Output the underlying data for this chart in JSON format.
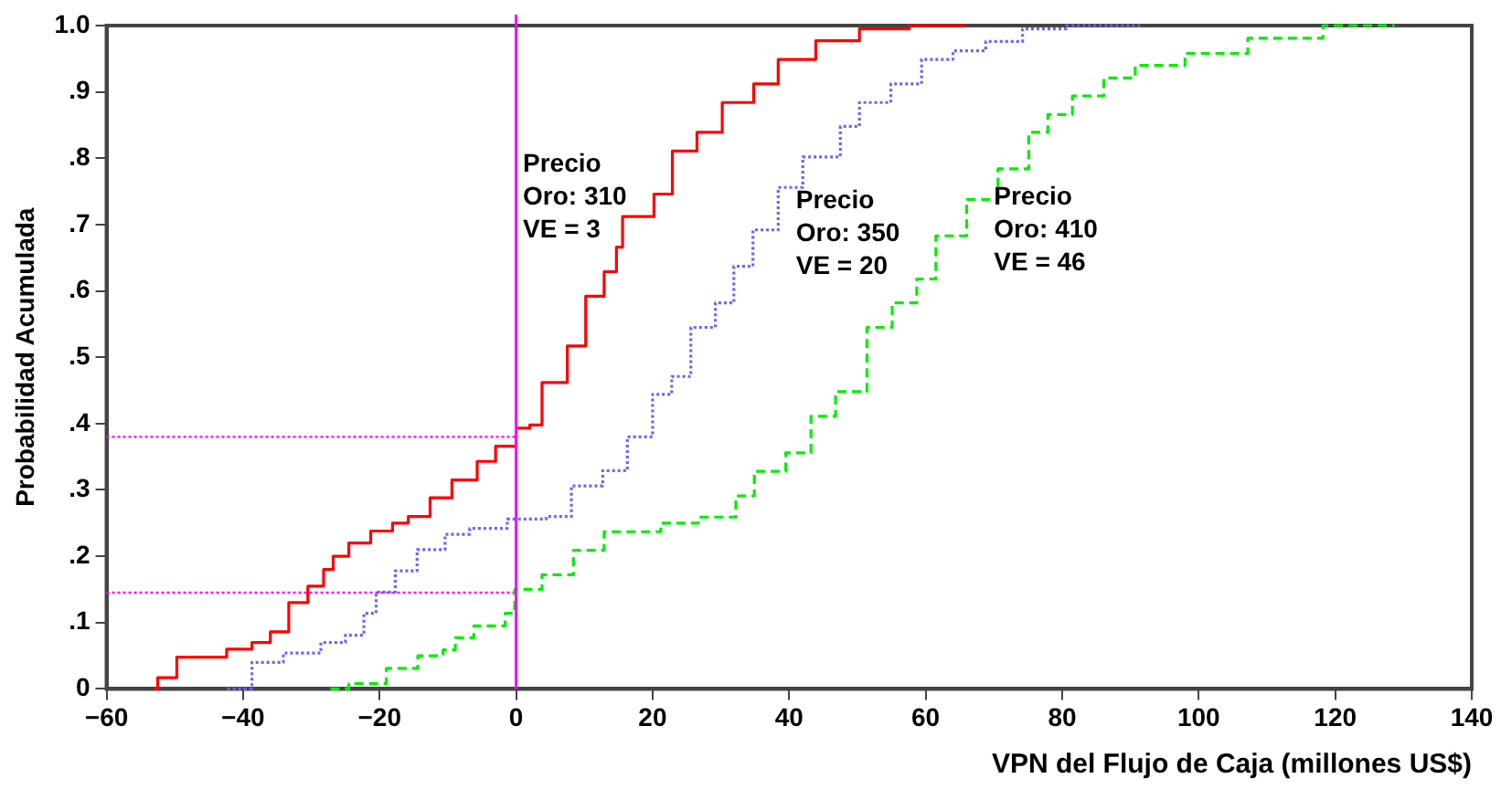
{
  "chart_data": {
    "type": "step",
    "xlabel": "VPN del Flujo de Caja (millones US$)",
    "ylabel": "Probabilidad Acumulada",
    "xlim": [
      -60,
      140
    ],
    "xticks": [
      {
        "value": -60,
        "label": "−60"
      },
      {
        "value": -40,
        "label": "−40"
      },
      {
        "value": -20,
        "label": "−20"
      },
      0,
      20,
      40,
      60,
      80,
      100,
      120,
      140
    ],
    "ylim": [
      0,
      1
    ],
    "yticks": [
      0,
      {
        "value": 0.1,
        "label": ".1"
      },
      {
        "value": 0.2,
        "label": ".2"
      },
      {
        "value": 0.3,
        "label": ".3"
      },
      {
        "value": 0.4,
        "label": ".4"
      },
      {
        "value": 0.5,
        "label": ".5"
      },
      {
        "value": 0.6,
        "label": ".6"
      },
      {
        "value": 0.7,
        "label": ".7"
      },
      {
        "value": 0.8,
        "label": ".8"
      },
      {
        "value": 0.9,
        "label": ".9"
      },
      {
        "value": 1,
        "label": "1.0"
      }
    ],
    "grid": false,
    "legend": false,
    "marker": "none",
    "series": [
      {
        "color": "#ff0000",
        "line_style": "solid",
        "x": [
          -53,
          -52.5,
          -49.7,
          -44.2,
          -42.4,
          -38.7,
          -36,
          -33.3,
          -30.5,
          -28.2,
          -26.8,
          -24.5,
          -21.3,
          -18.1,
          -15.8,
          -12.6,
          -9.4,
          -5.7,
          -3,
          0,
          2,
          3.8,
          7.5,
          10.2,
          12.9,
          14.7,
          15.6,
          20.2,
          22.9,
          26.5,
          30.2,
          34.8,
          38.4,
          43.9,
          50.3,
          57.6,
          66
        ],
        "values": [
          0,
          0.017,
          0.048,
          0.048,
          0.06,
          0.07,
          0.086,
          0.13,
          0.155,
          0.18,
          0.2,
          0.22,
          0.238,
          0.25,
          0.26,
          0.288,
          0.315,
          0.343,
          0.366,
          0.393,
          0.398,
          0.462,
          0.517,
          0.592,
          0.629,
          0.666,
          0.712,
          0.746,
          0.811,
          0.839,
          0.884,
          0.912,
          0.949,
          0.977,
          0.995,
          1,
          1
        ]
      },
      {
        "color": "#6666ff",
        "line_style": "dotted",
        "x": [
          -42.3,
          -38.7,
          -34.1,
          -28.6,
          -25,
          -22.3,
          -20.5,
          -17.7,
          -14.5,
          -10.4,
          -6.8,
          -1.3,
          4.4,
          8.1,
          12.7,
          16.3,
          20,
          22.8,
          25.6,
          29.2,
          31.9,
          34.7,
          38.4,
          42,
          47.5,
          50.3,
          54.9,
          59.4,
          64,
          68.8,
          74.2,
          80.6,
          91.6
        ],
        "values": [
          0,
          0.04,
          0.054,
          0.07,
          0.081,
          0.114,
          0.146,
          0.178,
          0.21,
          0.233,
          0.242,
          0.256,
          0.26,
          0.306,
          0.329,
          0.38,
          0.444,
          0.471,
          0.545,
          0.582,
          0.637,
          0.692,
          0.756,
          0.802,
          0.848,
          0.884,
          0.912,
          0.949,
          0.962,
          0.976,
          0.995,
          1,
          1
        ]
      },
      {
        "color": "#00ee00",
        "line_style": "dashed",
        "x": [
          -27.2,
          -24.5,
          -19,
          -14.4,
          -10.7,
          -8.9,
          -6.2,
          -1.6,
          -0.2,
          3.8,
          8.4,
          12.9,
          21.2,
          26.7,
          32.2,
          34.9,
          39.5,
          43.2,
          46.8,
          51.4,
          55.1,
          58.7,
          61.5,
          66,
          70.6,
          75.1,
          77.9,
          81.5,
          86.1,
          90.7,
          98,
          107.2,
          118.2,
          128.7
        ],
        "values": [
          0,
          0.008,
          0.031,
          0.05,
          0.059,
          0.077,
          0.095,
          0.114,
          0.15,
          0.172,
          0.209,
          0.237,
          0.25,
          0.259,
          0.291,
          0.328,
          0.356,
          0.411,
          0.448,
          0.545,
          0.582,
          0.618,
          0.683,
          0.738,
          0.784,
          0.839,
          0.866,
          0.894,
          0.921,
          0.94,
          0.958,
          0.981,
          1,
          1
        ]
      },
      {
        "type": "line",
        "color": "#ff00ff",
        "line_style": "dotted",
        "x": [
          -60,
          0
        ],
        "values": [
          0.38,
          0.38
        ]
      },
      {
        "type": "line",
        "color": "#ff00ff",
        "line_style": "dotted",
        "x": [
          -60,
          0
        ],
        "values": [
          0.145,
          0.145
        ]
      }
    ],
    "ref_lines": [
      {
        "axis": "x",
        "value": 0,
        "color": "#ff00ff",
        "line_style": "solid"
      }
    ],
    "annotations": [
      "Precio\nOro: 310\nVE = 3",
      "Precio\nOro: 350\nVE = 20",
      "Precio\nOro: 410\nVE = 46"
    ]
  }
}
